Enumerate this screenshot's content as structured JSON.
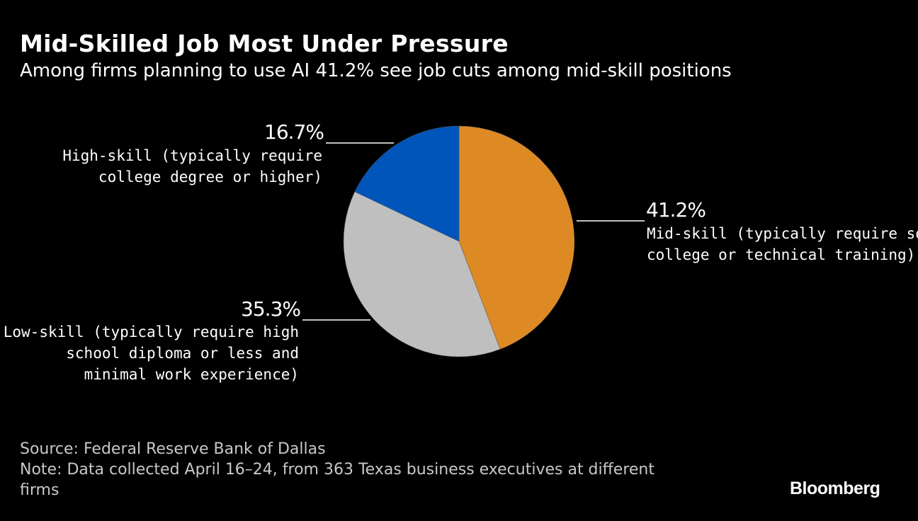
{
  "title": "Mid-Skilled Job Most Under Pressure",
  "subtitle": "Among firms planning to use AI 41.2% see job cuts among mid-skill positions",
  "chart_data": {
    "type": "pie",
    "start": "top",
    "direction": "clockwise",
    "slices": [
      {
        "label": "Mid-skill (typically require some college or technical training)",
        "lines": [
          "Mid-skill (typically require some",
          "college or technical training)"
        ],
        "value": 41.2,
        "value_label": "41.2%",
        "color": "#DD8A24"
      },
      {
        "label": "Low-skill (typically require high school diploma or less and minimal work experience)",
        "lines": [
          "Low-skill (typically require high",
          "school diploma or less and",
          "minimal work experience)"
        ],
        "value": 35.3,
        "value_label": "35.3%",
        "color": "#BFBFBF"
      },
      {
        "label": "High-skill (typically require college degree or higher)",
        "lines": [
          "High-skill (typically require",
          "college degree or higher)"
        ],
        "value": 16.7,
        "value_label": "16.7%",
        "color": "#0055BB"
      }
    ]
  },
  "footer": {
    "source": "Source: Federal Reserve Bank of Dallas",
    "note": "Note: Data collected April 16–24, from 363 Texas business executives at different firms"
  },
  "logo": "Bloomberg"
}
